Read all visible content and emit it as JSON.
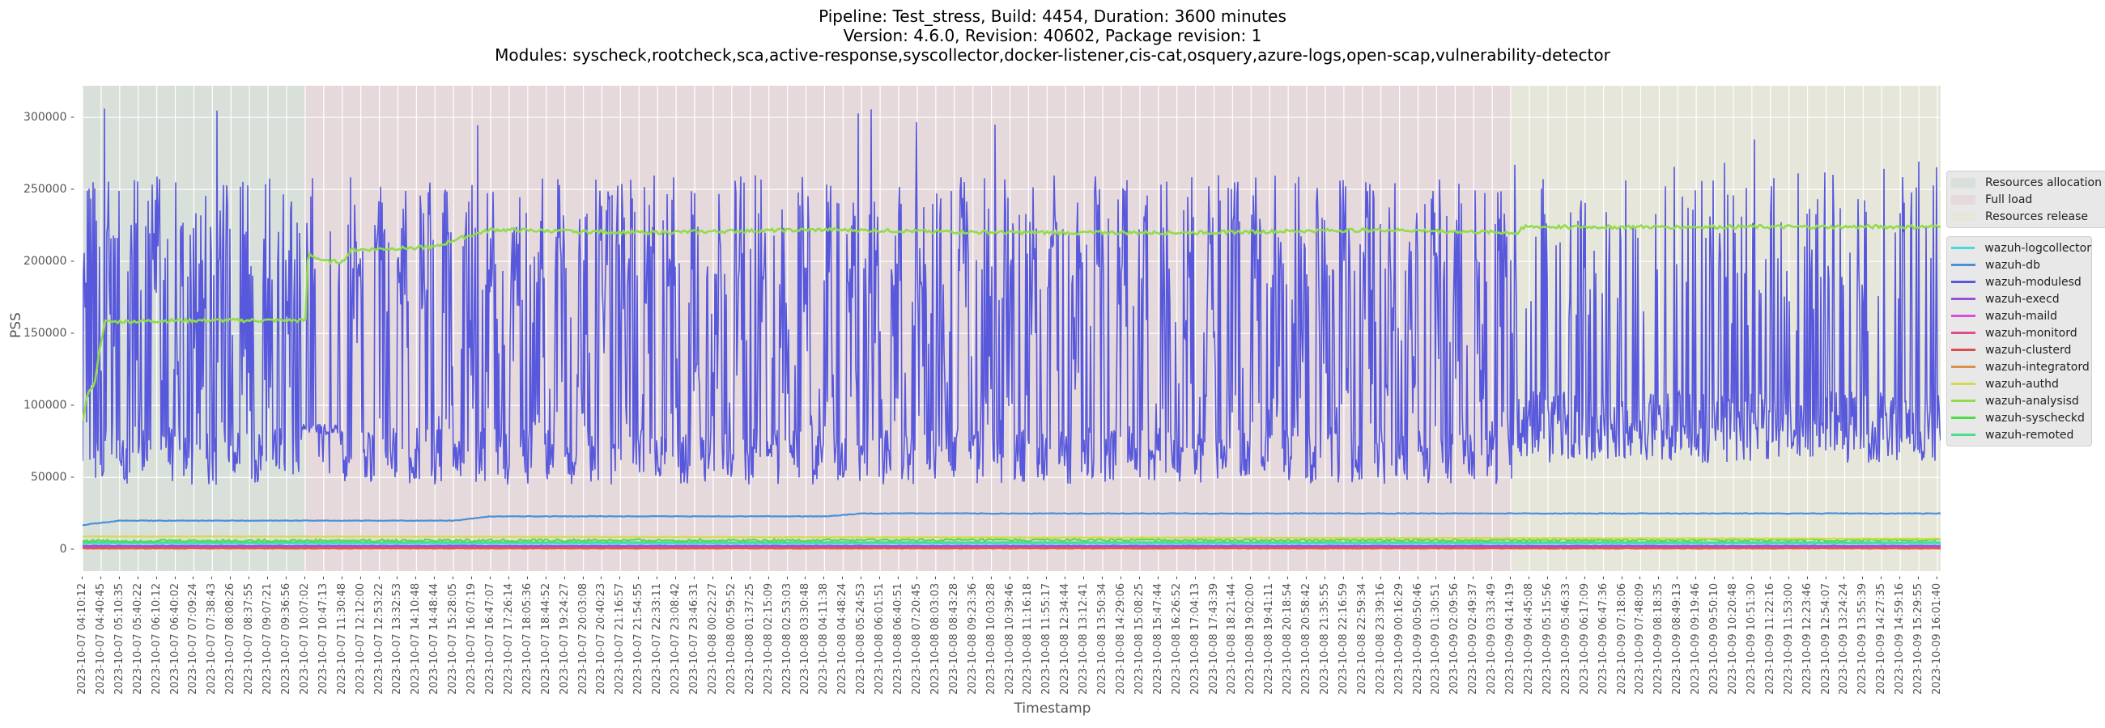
{
  "title": {
    "line1": "Pipeline: Test_stress, Build: 4454, Duration: 3600 minutes",
    "line2": "Version: 4.6.0, Revision: 40602, Package revision: 1",
    "line3": "Modules: syscheck,rootcheck,sca,active-response,syscollector,docker-listener,cis-cat,osquery,azure-logs,open-scap,vulnerability-detector"
  },
  "axes": {
    "ylabel": "PSS",
    "xlabel": "Timestamp",
    "yticks": [
      "0",
      "50000",
      "100000",
      "150000",
      "200000",
      "250000",
      "300000"
    ]
  },
  "legend_phases": [
    {
      "label": "Resources allocation",
      "color": "#d9dfd9"
    },
    {
      "label": "Full load",
      "color": "#e6d9db"
    },
    {
      "label": "Resources release",
      "color": "#e6e6da"
    }
  ],
  "legend_series": [
    {
      "label": "wazuh-logcollector",
      "color": "#4dd9d9"
    },
    {
      "label": "wazuh-db",
      "color": "#4a90d9"
    },
    {
      "label": "wazuh-modulesd",
      "color": "#5858dc"
    },
    {
      "label": "wazuh-execd",
      "color": "#9b4ddc"
    },
    {
      "label": "wazuh-maild",
      "color": "#dc4ddc"
    },
    {
      "label": "wazuh-monitord",
      "color": "#dc4d8f"
    },
    {
      "label": "wazuh-clusterd",
      "color": "#dc4d4d"
    },
    {
      "label": "wazuh-integratord",
      "color": "#dc8f4d"
    },
    {
      "label": "wazuh-authd",
      "color": "#d9d94d"
    },
    {
      "label": "wazuh-analysisd",
      "color": "#8fdc4d"
    },
    {
      "label": "wazuh-syscheckd",
      "color": "#4ddc4d"
    },
    {
      "label": "wazuh-remoted",
      "color": "#4ddc8f"
    }
  ],
  "xticks": [
    "2023-10-07 04:10:12",
    "2023-10-07 04:40:45",
    "2023-10-07 05:10:35",
    "2023-10-07 05:40:22",
    "2023-10-07 06:10:12",
    "2023-10-07 06:40:02",
    "2023-10-07 07:09:24",
    "2023-10-07 07:38:43",
    "2023-10-07 08:08:26",
    "2023-10-07 08:37:55",
    "2023-10-07 09:07:21",
    "2023-10-07 09:36:56",
    "2023-10-07 10:07:02",
    "2023-10-07 10:47:13",
    "2023-10-07 11:30:48",
    "2023-10-07 12:12:00",
    "2023-10-07 12:53:22",
    "2023-10-07 13:32:53",
    "2023-10-07 14:10:48",
    "2023-10-07 14:48:44",
    "2023-10-07 15:28:05",
    "2023-10-07 16:07:19",
    "2023-10-07 16:47:07",
    "2023-10-07 17:26:14",
    "2023-10-07 18:05:36",
    "2023-10-07 18:44:52",
    "2023-10-07 19:24:27",
    "2023-10-07 20:03:08",
    "2023-10-07 20:40:23",
    "2023-10-07 21:16:57",
    "2023-10-07 21:54:55",
    "2023-10-07 22:33:11",
    "2023-10-07 23:08:42",
    "2023-10-07 23:46:31",
    "2023-10-08 00:22:27",
    "2023-10-08 00:59:52",
    "2023-10-08 01:37:25",
    "2023-10-08 02:15:09",
    "2023-10-08 02:53:03",
    "2023-10-08 03:30:48",
    "2023-10-08 04:11:38",
    "2023-10-08 04:48:24",
    "2023-10-08 05:24:53",
    "2023-10-08 06:01:51",
    "2023-10-08 06:40:51",
    "2023-10-08 07:20:45",
    "2023-10-08 08:03:03",
    "2023-10-08 08:43:28",
    "2023-10-08 09:23:36",
    "2023-10-08 10:03:28",
    "2023-10-08 10:39:46",
    "2023-10-08 11:16:18",
    "2023-10-08 11:55:17",
    "2023-10-08 12:34:44",
    "2023-10-08 13:12:41",
    "2023-10-08 13:50:34",
    "2023-10-08 14:29:06",
    "2023-10-08 15:08:25",
    "2023-10-08 15:47:44",
    "2023-10-08 16:26:52",
    "2023-10-08 17:04:13",
    "2023-10-08 17:43:39",
    "2023-10-08 18:21:44",
    "2023-10-08 19:02:00",
    "2023-10-08 19:41:11",
    "2023-10-08 20:18:54",
    "2023-10-08 20:58:42",
    "2023-10-08 21:35:55",
    "2023-10-08 22:16:59",
    "2023-10-08 22:59:34",
    "2023-10-08 23:39:16",
    "2023-10-09 00:16:29",
    "2023-10-09 00:50:46",
    "2023-10-09 01:30:51",
    "2023-10-09 02:09:56",
    "2023-10-09 02:49:37",
    "2023-10-09 03:33:49",
    "2023-10-09 04:14:19",
    "2023-10-09 04:45:08",
    "2023-10-09 05:15:56",
    "2023-10-09 05:46:33",
    "2023-10-09 06:17:09",
    "2023-10-09 06:47:36",
    "2023-10-09 07:18:06",
    "2023-10-09 07:48:09",
    "2023-10-09 08:18:35",
    "2023-10-09 08:49:13",
    "2023-10-09 09:19:46",
    "2023-10-09 09:50:10",
    "2023-10-09 10:20:48",
    "2023-10-09 10:51:30",
    "2023-10-09 11:22:16",
    "2023-10-09 11:53:00",
    "2023-10-09 12:23:46",
    "2023-10-09 12:54:07",
    "2023-10-09 13:24:24",
    "2023-10-09 13:55:39",
    "2023-10-09 14:27:35",
    "2023-10-09 14:59:16",
    "2023-10-09 15:29:55",
    "2023-10-09 16:01:40"
  ],
  "chart_data": {
    "type": "line",
    "title": "Pipeline: Test_stress, Build: 4454, Duration: 3600 minutes / Version: 4.6.0, Revision: 40602, Package revision: 1 / Modules: syscheck,rootcheck,sca,active-response,syscollector,docker-listener,cis-cat,osquery,azure-logs,open-scap,vulnerability-detector",
    "xlabel": "Timestamp",
    "ylabel": "PSS",
    "ylim": [
      -15000,
      322000
    ],
    "xrange": [
      "2023-10-07 04:10:12",
      "2023-10-09 16:01:40"
    ],
    "grid": true,
    "legend_position": "right-outside",
    "phases": [
      {
        "name": "Resources allocation",
        "start": "2023-10-07 04:10:12",
        "end": "2023-10-07 10:07:02"
      },
      {
        "name": "Full load",
        "start": "2023-10-07 10:07:02",
        "end": "2023-10-09 04:14:19"
      },
      {
        "name": "Resources release",
        "start": "2023-10-09 04:14:19",
        "end": "2023-10-09 16:01:40"
      }
    ],
    "series": [
      {
        "name": "wazuh-modulesd",
        "description": "highly oscillating between ~40000 and ~250000 with peaks up to ~307000; baseline ~70000-100000 in release phase",
        "key_points": [
          [
            0,
            65000
          ],
          [
            0.02,
            307000
          ],
          [
            0.12,
            305000
          ],
          [
            0.25,
            80000
          ],
          [
            0.5,
            80000
          ],
          [
            0.77,
            80000
          ],
          [
            0.9,
            90000
          ],
          [
            1.0,
            95000
          ]
        ],
        "min": 35000,
        "max": 307000
      },
      {
        "name": "wazuh-analysisd",
        "key_points": [
          [
            0.0,
            90000
          ],
          [
            0.003,
            110000
          ],
          [
            0.006,
            112000
          ],
          [
            0.01,
            145000
          ],
          [
            0.012,
            158000
          ],
          [
            0.05,
            159000
          ],
          [
            0.12,
            159000
          ],
          [
            0.12,
            195000
          ],
          [
            0.122,
            205000
          ],
          [
            0.13,
            200000
          ],
          [
            0.14,
            200000
          ],
          [
            0.145,
            208000
          ],
          [
            0.19,
            210000
          ],
          [
            0.2,
            215000
          ],
          [
            0.22,
            222000
          ],
          [
            0.3,
            220000
          ],
          [
            0.4,
            222000
          ],
          [
            0.5,
            220000
          ],
          [
            0.6,
            220000
          ],
          [
            0.7,
            222000
          ],
          [
            0.77,
            220000
          ],
          [
            0.773,
            219000
          ],
          [
            0.774,
            224000
          ],
          [
            0.85,
            224000
          ],
          [
            1.0,
            224000
          ]
        ]
      },
      {
        "name": "wazuh-db",
        "key_points": [
          [
            0.0,
            17000
          ],
          [
            0.02,
            20000
          ],
          [
            0.12,
            20000
          ],
          [
            0.2,
            20000
          ],
          [
            0.22,
            23000
          ],
          [
            0.4,
            23000
          ],
          [
            0.42,
            25000
          ],
          [
            1.0,
            25000
          ]
        ]
      },
      {
        "name": "wazuh-authd",
        "key_points": [
          [
            0.0,
            9000
          ],
          [
            0.12,
            9000
          ],
          [
            1.0,
            7500
          ]
        ]
      },
      {
        "name": "wazuh-syscheckd",
        "key_points": [
          [
            0.0,
            6000
          ],
          [
            0.5,
            6500
          ],
          [
            1.0,
            6500
          ]
        ]
      },
      {
        "name": "wazuh-remoted",
        "key_points": [
          [
            0.0,
            5000
          ],
          [
            1.0,
            5000
          ]
        ]
      },
      {
        "name": "wazuh-logcollector",
        "key_points": [
          [
            0.0,
            4000
          ],
          [
            1.0,
            4000
          ]
        ]
      },
      {
        "name": "wazuh-execd",
        "key_points": [
          [
            0.0,
            2500
          ],
          [
            1.0,
            2500
          ]
        ]
      },
      {
        "name": "wazuh-maild",
        "key_points": [
          [
            0.0,
            2200
          ],
          [
            1.0,
            2200
          ]
        ]
      },
      {
        "name": "wazuh-monitord",
        "key_points": [
          [
            0.0,
            2000
          ],
          [
            1.0,
            2000
          ]
        ]
      },
      {
        "name": "wazuh-clusterd",
        "key_points": [
          [
            0.0,
            1000
          ],
          [
            1.0,
            1000
          ]
        ]
      },
      {
        "name": "wazuh-integratord",
        "key_points": [
          [
            0.0,
            500
          ],
          [
            1.0,
            500
          ]
        ]
      }
    ]
  }
}
